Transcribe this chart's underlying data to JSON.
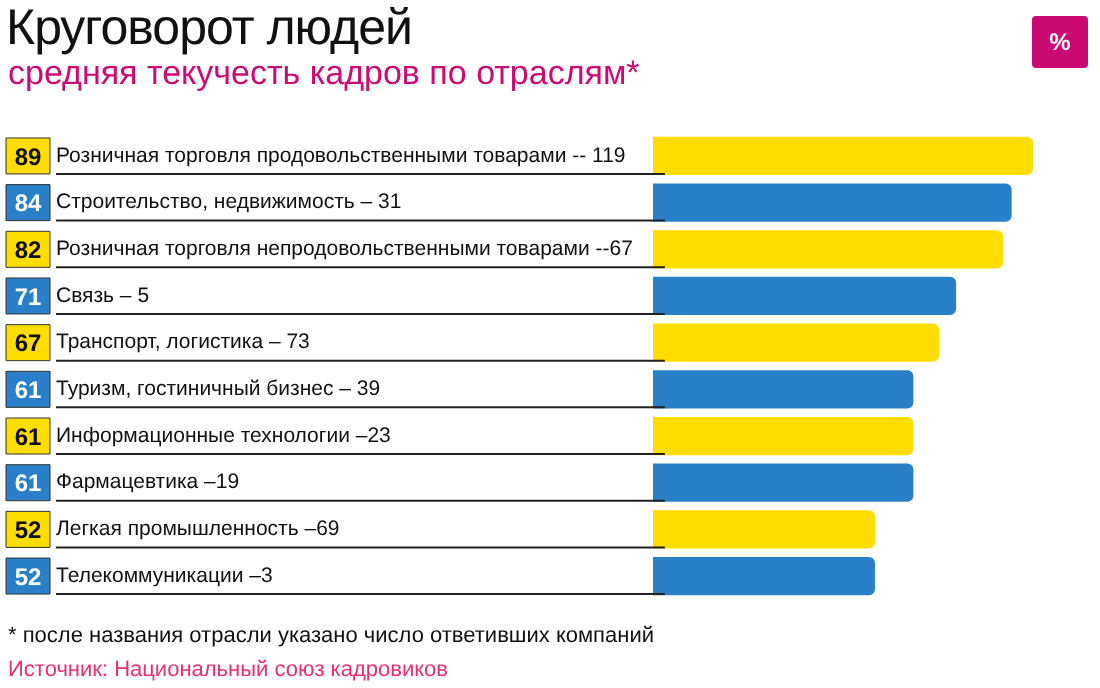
{
  "chart_data": {
    "type": "bar",
    "orientation": "horizontal",
    "title": "Круговорот людей",
    "subtitle": "средняя текучесть кадров по отраслям*",
    "xlabel": "%",
    "categories": [
      "Розничная торговля продовольственными товарами -- 119",
      "Строительство, недвижимость – 31",
      "Розничная торговля непродовольственными товарами --67",
      "Связь – 5",
      "Транспорт, логистика – 73",
      "Туризм, гостиничный бизнес – 39",
      "Информационные технологии –23",
      "Фармацевтика –19",
      "Легкая промышленность –69",
      "Телекоммуникации –3"
    ],
    "values": [
      89,
      84,
      82,
      71,
      67,
      61,
      61,
      61,
      52,
      52
    ],
    "colors": [
      "#ffdd00",
      "#2a80c8",
      "#ffdd00",
      "#2a80c8",
      "#ffdd00",
      "#2a80c8",
      "#ffdd00",
      "#2a80c8",
      "#ffdd00",
      "#2a80c8"
    ],
    "data_labels": true,
    "grid": false,
    "legend": false,
    "annotations": [
      "* после названия отрасли указано число ответивших компаний",
      "Источник: Национальный союз кадровиков"
    ]
  }
}
